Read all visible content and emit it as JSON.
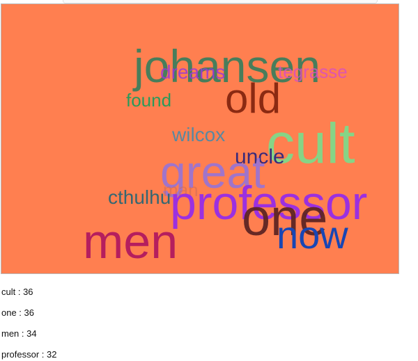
{
  "cloud": {
    "background": "#ff7f50",
    "words": [
      {
        "text": "johansen",
        "color": "#3f7d5c"
      },
      {
        "text": "dreams",
        "color": "#9a38d6"
      },
      {
        "text": "tegrasse",
        "color": "#d94fc0"
      },
      {
        "text": "old",
        "color": "#8b2a12"
      },
      {
        "text": "found",
        "color": "#2a9a5a"
      },
      {
        "text": "wilcox",
        "color": "#5a88a0"
      },
      {
        "text": "cult",
        "color": "#86d486"
      },
      {
        "text": "uncle",
        "color": "#3a2a7a"
      },
      {
        "text": "great",
        "color": "#9673d8"
      },
      {
        "text": "man",
        "color": "#cc6b5a"
      },
      {
        "text": "cthulhu",
        "color": "#356772"
      },
      {
        "text": "professor",
        "color": "#9b30e0"
      },
      {
        "text": "one",
        "color": "#5a2222"
      },
      {
        "text": "now",
        "color": "#1846b4"
      },
      {
        "text": "men",
        "color": "#b51e5e"
      }
    ]
  },
  "frequencies": [
    {
      "label": "cult : 36"
    },
    {
      "label": "one : 36"
    },
    {
      "label": "men : 34"
    },
    {
      "label": "professor : 32"
    }
  ]
}
